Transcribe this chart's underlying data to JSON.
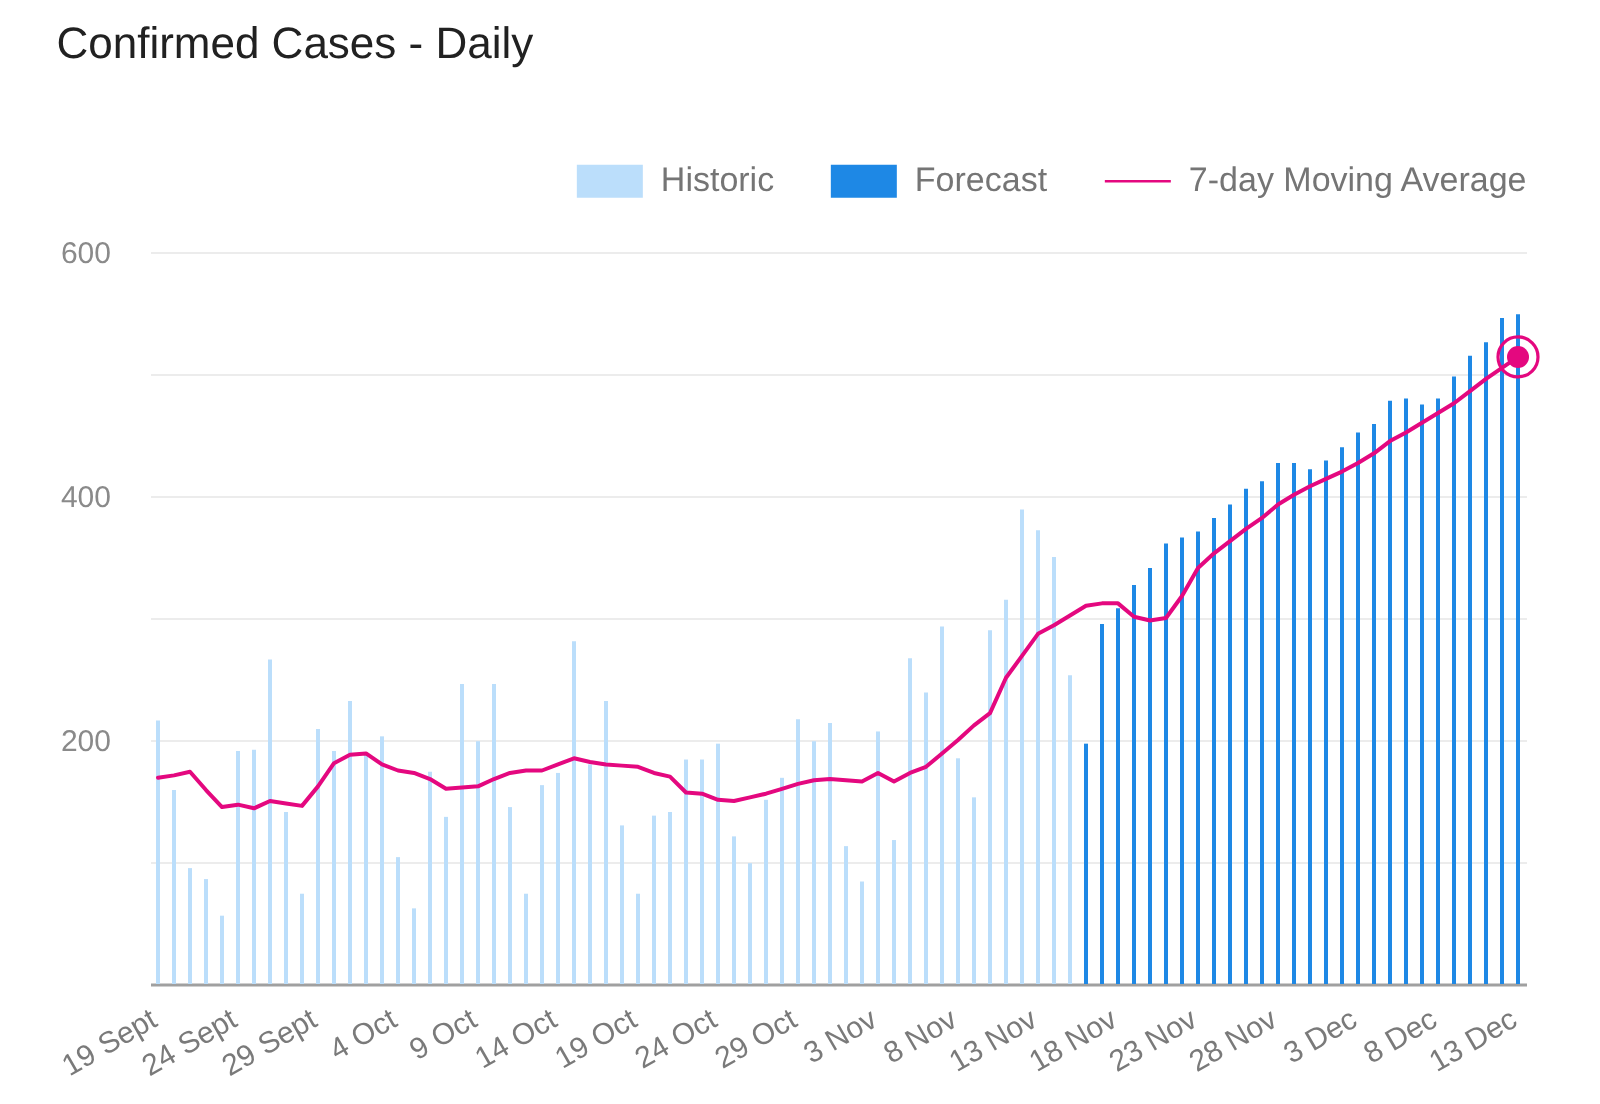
{
  "chart_data": {
    "type": "bar",
    "title": "Confirmed Cases - Daily",
    "categories": [
      "19 Sept",
      null,
      null,
      null,
      null,
      "24 Sept",
      null,
      null,
      null,
      null,
      "29 Sept",
      null,
      null,
      null,
      null,
      "4 Oct",
      null,
      null,
      null,
      null,
      "9 Oct",
      null,
      null,
      null,
      null,
      "14 Oct",
      null,
      null,
      null,
      null,
      "19 Oct",
      null,
      null,
      null,
      null,
      "24 Oct",
      null,
      null,
      null,
      null,
      "29 Oct",
      null,
      null,
      null,
      null,
      "3 Nov",
      null,
      null,
      null,
      null,
      "8 Nov",
      null,
      null,
      null,
      null,
      "13 Nov",
      null,
      null,
      null,
      null,
      "18 Nov",
      null,
      null,
      null,
      null,
      "23 Nov",
      null,
      null,
      null,
      null,
      "28 Nov",
      null,
      null,
      null,
      null,
      "3 Dec",
      null,
      null,
      null,
      null,
      "8 Dec",
      null,
      null,
      null,
      null,
      "13 Dec"
    ],
    "series": [
      {
        "name": "Historic",
        "color": "#bbdefb",
        "values": [
          216,
          159,
          95,
          86,
          56,
          191,
          192,
          266,
          141,
          74,
          209,
          191,
          232,
          188,
          203,
          104,
          62,
          174,
          137,
          246,
          199,
          246,
          145,
          74,
          163,
          173,
          281,
          180,
          232,
          130,
          74,
          138,
          141,
          184,
          184,
          197,
          121,
          99,
          151,
          169,
          217,
          199,
          214,
          113,
          84,
          207,
          118,
          267,
          239,
          293,
          185,
          153,
          290,
          315,
          389,
          372,
          350,
          253,
          null,
          null,
          null,
          null,
          null,
          null,
          null,
          null,
          null,
          null,
          null,
          null,
          null,
          null,
          null,
          null,
          null,
          null,
          null,
          null,
          null,
          null,
          null,
          null,
          null,
          null,
          null,
          null
        ]
      },
      {
        "name": "Forecast",
        "color": "#1e88e5",
        "values": [
          null,
          null,
          null,
          null,
          null,
          null,
          null,
          null,
          null,
          null,
          null,
          null,
          null,
          null,
          null,
          null,
          null,
          null,
          null,
          null,
          null,
          null,
          null,
          null,
          null,
          null,
          null,
          null,
          null,
          null,
          null,
          null,
          null,
          null,
          null,
          null,
          null,
          null,
          null,
          null,
          null,
          null,
          null,
          null,
          null,
          null,
          null,
          null,
          null,
          null,
          null,
          null,
          null,
          null,
          null,
          null,
          null,
          null,
          197,
          295,
          308,
          327,
          341,
          361,
          366,
          371,
          382,
          393,
          406,
          412,
          427,
          427,
          422,
          429,
          440,
          452,
          459,
          478,
          480,
          475,
          480,
          498,
          515,
          526,
          546,
          549
        ]
      },
      {
        "name": "7-day Moving Average",
        "type": "line",
        "color": "#e4087f",
        "values": [
          169,
          171,
          174,
          159,
          145,
          147,
          144,
          150,
          148,
          146,
          162,
          181,
          188,
          189,
          180,
          175,
          173,
          168,
          160,
          161,
          162,
          168,
          173,
          175,
          175,
          180,
          185,
          182,
          180,
          179,
          178,
          173,
          170,
          157,
          156,
          151,
          150,
          153,
          156,
          160,
          164,
          167,
          168,
          167,
          166,
          173,
          166,
          173,
          178,
          189,
          200,
          212,
          222,
          251,
          269,
          287,
          294,
          302,
          310,
          312,
          312,
          301,
          298,
          300,
          318,
          341,
          353,
          363,
          373,
          382,
          393,
          401,
          408,
          414,
          420,
          427,
          435,
          445,
          452,
          460,
          468,
          476,
          486,
          496,
          505,
          514
        ]
      },
      {
        "type": "scatter",
        "color": "#e4087f",
        "marker": "circle",
        "values": [
          null,
          null,
          null,
          null,
          null,
          null,
          null,
          null,
          null,
          null,
          null,
          null,
          null,
          null,
          null,
          null,
          null,
          null,
          null,
          null,
          null,
          null,
          null,
          null,
          null,
          null,
          null,
          null,
          null,
          null,
          null,
          null,
          null,
          null,
          null,
          null,
          null,
          null,
          null,
          null,
          null,
          null,
          null,
          null,
          null,
          null,
          null,
          null,
          null,
          null,
          null,
          null,
          null,
          null,
          null,
          null,
          null,
          null,
          null,
          null,
          null,
          null,
          null,
          null,
          null,
          null,
          null,
          null,
          null,
          null,
          null,
          null,
          null,
          null,
          null,
          null,
          null,
          null,
          null,
          null,
          null,
          null,
          null,
          null,
          null,
          514
        ]
      }
    ],
    "ylim": [
      0,
      600
    ],
    "yticks": [
      {
        "value": 100,
        "label": null
      },
      200,
      {
        "value": 300,
        "label": null
      },
      400,
      {
        "value": 500,
        "label": null
      },
      600
    ],
    "grid": "y",
    "legend": "top right"
  }
}
